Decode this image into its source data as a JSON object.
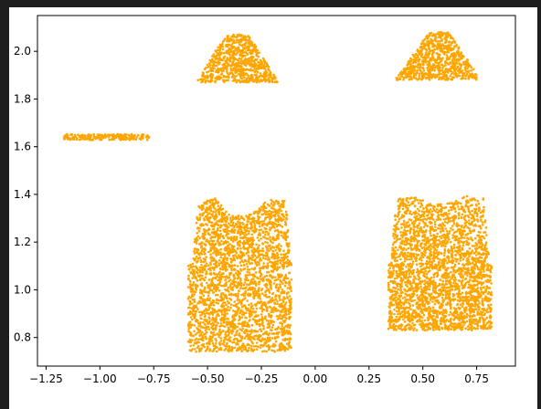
{
  "chart_data": {
    "type": "scatter",
    "title": "",
    "xlabel": "",
    "ylabel": "",
    "xlim": [
      -1.29,
      0.93
    ],
    "ylim": [
      0.68,
      2.15
    ],
    "xticks": [
      -1.25,
      -1.0,
      -0.75,
      -0.5,
      -0.25,
      0.0,
      0.25,
      0.5,
      0.75
    ],
    "xtick_labels": [
      "−1.25",
      "−1.00",
      "−0.75",
      "−0.50",
      "−0.25",
      "0.00",
      "0.25",
      "0.50",
      "0.75"
    ],
    "yticks": [
      0.8,
      1.0,
      1.2,
      1.4,
      1.6,
      1.8,
      2.0
    ],
    "ytick_labels": [
      "0.8",
      "1.0",
      "1.2",
      "1.4",
      "1.6",
      "1.8",
      "2.0"
    ],
    "grid": false,
    "marker_color": "#ffa500",
    "series": [
      {
        "points_description": "dense point cloud clusters",
        "clusters": [
          {
            "shape": "thin-strip",
            "x_range": [
              -1.17,
              -0.77
            ],
            "y_center": 1.64,
            "y_halfwidth": 0.012
          },
          {
            "shape": "cap",
            "x_range": [
              -0.55,
              -0.17
            ],
            "y_range": [
              1.87,
              2.07
            ],
            "top_x_range": [
              -0.42,
              -0.31
            ]
          },
          {
            "shape": "cap",
            "x_range": [
              0.37,
              0.77
            ],
            "y_range": [
              1.88,
              2.08
            ],
            "top_x_range": [
              0.53,
              0.62
            ]
          },
          {
            "shape": "shirt",
            "x_range": [
              -0.59,
              -0.11
            ],
            "y_range": [
              0.74,
              1.39
            ],
            "shoulder_y": 1.11,
            "upper_x_range": [
              -0.57,
              -0.11
            ],
            "neck_x": -0.34,
            "neck_y": 1.31
          },
          {
            "shape": "shirt",
            "x_range": [
              0.34,
              0.82
            ],
            "y_range": [
              0.83,
              1.4
            ],
            "shoulder_y": 1.11,
            "upper_x_range": [
              0.35,
              0.81
            ],
            "neck_x": 0.58,
            "neck_y": 1.36
          }
        ]
      }
    ]
  }
}
